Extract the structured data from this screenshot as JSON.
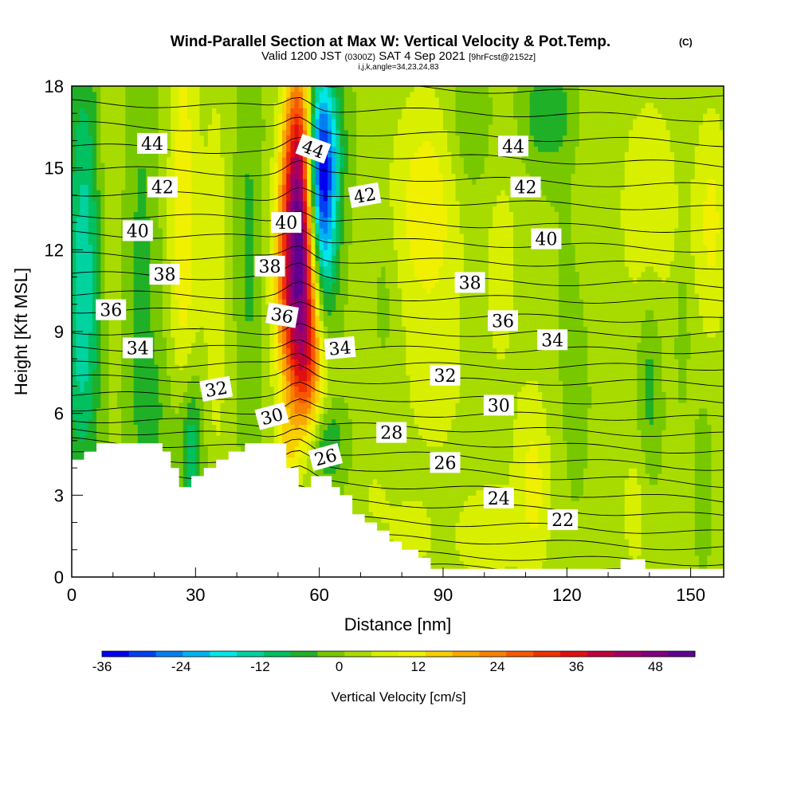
{
  "header": {
    "title": "Wind-Parallel Section at Max W: Vertical Velocity & Pot.Temp.",
    "title_mark": "(C)",
    "valid_prefix": "Valid 1200 JST",
    "valid_utc": "(0300Z)",
    "valid_date": "SAT 4 Sep 2021",
    "forecast": "[9hrFcst@2152z]",
    "location": "i,j,k,angle=34,23,24,83"
  },
  "chart_data": {
    "type": "heatmap",
    "title": "Wind-Parallel Section at Max W: Vertical Velocity & Pot.Temp.",
    "xlabel": "Distance [nm]",
    "ylabel": "Height [Kft MSL]",
    "xlim": [
      0,
      158
    ],
    "ylim": [
      0,
      18
    ],
    "x_ticks": [
      "0",
      "30",
      "60",
      "90",
      "120",
      "150"
    ],
    "y_ticks": [
      "0",
      "3",
      "6",
      "9",
      "12",
      "15",
      "18"
    ],
    "x_tick_values": [
      0,
      30,
      60,
      90,
      120,
      150
    ],
    "y_tick_values": [
      0,
      3,
      6,
      9,
      12,
      15,
      18
    ],
    "colorbar": {
      "label": "Vertical Velocity [cm/s]",
      "min": -36,
      "max": 54,
      "step": 4,
      "tick_labels": [
        "-36",
        "-24",
        "-12",
        "0",
        "12",
        "24",
        "36",
        "48"
      ],
      "tick_values": [
        -36,
        -24,
        -12,
        0,
        12,
        24,
        36,
        48
      ],
      "colors": [
        "#0000f0",
        "#0040f0",
        "#0080f0",
        "#00b4f0",
        "#00e6e6",
        "#00d2a0",
        "#00c060",
        "#20b028",
        "#78c800",
        "#a8dc00",
        "#d8f000",
        "#f0f000",
        "#f8d000",
        "#f8a800",
        "#f88000",
        "#f85800",
        "#f03000",
        "#e01010",
        "#c0003c",
        "#a00068",
        "#800080",
        "#600090"
      ]
    },
    "vertical_velocity": {
      "units": "cm/s",
      "background": 1,
      "features": [
        {
          "x": 3,
          "y": 12.5,
          "value": -14,
          "sx": 3,
          "sy": 5
        },
        {
          "x": 2,
          "y": 7,
          "value": -6,
          "sx": 3,
          "sy": 3
        },
        {
          "x": 9,
          "y": 15,
          "value": 4,
          "sx": 2,
          "sy": 4
        },
        {
          "x": 17,
          "y": 11,
          "value": -6,
          "sx": 3,
          "sy": 7
        },
        {
          "x": 27,
          "y": 13,
          "value": 10,
          "sx": 2.5,
          "sy": 6
        },
        {
          "x": 29,
          "y": 4.5,
          "value": -14,
          "sx": 2,
          "sy": 2
        },
        {
          "x": 35,
          "y": 11,
          "value": 5,
          "sx": 2.5,
          "sy": 6
        },
        {
          "x": 43,
          "y": 12,
          "value": -6,
          "sx": 2.5,
          "sy": 5
        },
        {
          "x": 22,
          "y": 6,
          "value": -4,
          "sx": 4,
          "sy": 2
        },
        {
          "x": 55,
          "y": 11,
          "value": 42,
          "sx": 3.5,
          "sy": 3
        },
        {
          "x": 55,
          "y": 15.5,
          "value": 28,
          "sx": 2.5,
          "sy": 2.8
        },
        {
          "x": 57,
          "y": 7.5,
          "value": 14,
          "sx": 3,
          "sy": 1.8
        },
        {
          "x": 60,
          "y": 15,
          "value": -30,
          "sx": 2.5,
          "sy": 2.5
        },
        {
          "x": 61,
          "y": 12,
          "value": -16,
          "sx": 2.5,
          "sy": 2.5
        },
        {
          "x": 63,
          "y": 16,
          "value": -8,
          "sx": 3,
          "sy": 2
        },
        {
          "x": 62,
          "y": 4.8,
          "value": -10,
          "sx": 3,
          "sy": 1
        },
        {
          "x": 52,
          "y": 4.6,
          "value": 8,
          "sx": 2,
          "sy": 1
        },
        {
          "x": 86,
          "y": 13.5,
          "value": 10,
          "sx": 6,
          "sy": 3
        },
        {
          "x": 76,
          "y": 10.5,
          "value": -3,
          "sx": 2,
          "sy": 2
        },
        {
          "x": 88,
          "y": 7,
          "value": 5,
          "sx": 5,
          "sy": 2
        },
        {
          "x": 104,
          "y": 12,
          "value": 4,
          "sx": 4,
          "sy": 5
        },
        {
          "x": 97,
          "y": 16.5,
          "value": -6,
          "sx": 4,
          "sy": 2
        },
        {
          "x": 115,
          "y": 17,
          "value": -8,
          "sx": 5,
          "sy": 1.5
        },
        {
          "x": 112,
          "y": 3.5,
          "value": 8,
          "sx": 3,
          "sy": 2.5
        },
        {
          "x": 100,
          "y": 1.5,
          "value": 5,
          "sx": 6,
          "sy": 1.5
        },
        {
          "x": 122,
          "y": 10,
          "value": -3,
          "sx": 3,
          "sy": 5
        },
        {
          "x": 125,
          "y": 14,
          "value": 4,
          "sx": 3,
          "sy": 3
        },
        {
          "x": 140,
          "y": 13.5,
          "value": 7,
          "sx": 5,
          "sy": 3
        },
        {
          "x": 155,
          "y": 13,
          "value": 8,
          "sx": 3,
          "sy": 3
        },
        {
          "x": 140,
          "y": 7,
          "value": -7,
          "sx": 2,
          "sy": 3
        },
        {
          "x": 148,
          "y": 9,
          "value": -6,
          "sx": 1,
          "sy": 1.5
        },
        {
          "x": 137,
          "y": 2.5,
          "value": 5,
          "sx": 3,
          "sy": 2
        },
        {
          "x": 153,
          "y": 3.5,
          "value": -4,
          "sx": 1.5,
          "sy": 2
        },
        {
          "x": 82,
          "y": 1.5,
          "value": 4,
          "sx": 5,
          "sy": 1.5
        },
        {
          "x": 73,
          "y": 3,
          "value": 3,
          "sx": 3,
          "sy": 1
        }
      ]
    },
    "terrain_kft": [
      [
        0,
        4.3
      ],
      [
        3,
        4.3
      ],
      [
        3,
        4.6
      ],
      [
        6,
        4.6
      ],
      [
        6,
        4.9
      ],
      [
        22,
        4.9
      ],
      [
        22,
        4.6
      ],
      [
        24,
        4.6
      ],
      [
        24,
        4.0
      ],
      [
        26,
        4.0
      ],
      [
        26,
        3.3
      ],
      [
        29,
        3.3
      ],
      [
        29,
        3.7
      ],
      [
        32,
        3.7
      ],
      [
        32,
        4.0
      ],
      [
        35,
        4.0
      ],
      [
        35,
        4.3
      ],
      [
        38,
        4.3
      ],
      [
        38,
        4.6
      ],
      [
        42,
        4.6
      ],
      [
        42,
        4.9
      ],
      [
        52,
        4.9
      ],
      [
        52,
        4.0
      ],
      [
        55,
        4.0
      ],
      [
        55,
        3.3
      ],
      [
        58,
        3.3
      ],
      [
        58,
        3.7
      ],
      [
        63,
        3.7
      ],
      [
        63,
        3.3
      ],
      [
        65,
        3.3
      ],
      [
        65,
        3.0
      ],
      [
        68,
        3.0
      ],
      [
        68,
        2.3
      ],
      [
        71,
        2.3
      ],
      [
        71,
        2.0
      ],
      [
        74,
        2.0
      ],
      [
        74,
        1.7
      ],
      [
        77,
        1.7
      ],
      [
        77,
        1.3
      ],
      [
        80,
        1.3
      ],
      [
        80,
        1.0
      ],
      [
        84,
        1.0
      ],
      [
        84,
        0.7
      ],
      [
        87,
        0.7
      ],
      [
        87,
        0.3
      ],
      [
        133,
        0.3
      ],
      [
        133,
        0.65
      ],
      [
        139,
        0.65
      ],
      [
        139,
        0.3
      ],
      [
        158,
        0.3
      ],
      [
        158,
        0
      ],
      [
        0,
        0
      ]
    ],
    "potential_temperature": {
      "units": "C",
      "contour_interval": 1,
      "levels": [
        {
          "theta": 20,
          "z0": 0.7,
          "z1": 0.1
        },
        {
          "theta": 21,
          "z0": 1.2,
          "z1": 0.5
        },
        {
          "theta": 22,
          "z0": 1.8,
          "z1": 1.05
        },
        {
          "theta": 23,
          "z0": 2.5,
          "z1": 1.6
        },
        {
          "theta": 24,
          "z0": 3.2,
          "z1": 2.2
        },
        {
          "theta": 25,
          "z0": 3.9,
          "z1": 2.8
        },
        {
          "theta": 26,
          "z0": 4.5,
          "z1": 3.4
        },
        {
          "theta": 27,
          "z0": 5.0,
          "z1": 4.0
        },
        {
          "theta": 28,
          "z0": 5.4,
          "z1": 4.6
        },
        {
          "theta": 29,
          "z0": 5.8,
          "z1": 5.2
        },
        {
          "theta": 30,
          "z0": 6.2,
          "z1": 5.8
        },
        {
          "theta": 31,
          "z0": 6.7,
          "z1": 6.4
        },
        {
          "theta": 32,
          "z0": 7.3,
          "z1": 7.1
        },
        {
          "theta": 33,
          "z0": 7.8,
          "z1": 7.7
        },
        {
          "theta": 34,
          "z0": 8.4,
          "z1": 8.3
        },
        {
          "theta": 35,
          "z0": 9.0,
          "z1": 8.9
        },
        {
          "theta": 36,
          "z0": 9.8,
          "z1": 9.4
        },
        {
          "theta": 37,
          "z0": 10.4,
          "z1": 10.1
        },
        {
          "theta": 38,
          "z0": 11.1,
          "z1": 10.7
        },
        {
          "theta": 39,
          "z0": 11.8,
          "z1": 11.4
        },
        {
          "theta": 40,
          "z0": 12.6,
          "z1": 12.0
        },
        {
          "theta": 41,
          "z0": 13.3,
          "z1": 12.7
        },
        {
          "theta": 42,
          "z0": 14.1,
          "z1": 13.5
        },
        {
          "theta": 43,
          "z0": 15.0,
          "z1": 14.3
        },
        {
          "theta": 44,
          "z0": 15.8,
          "z1": 15.1
        },
        {
          "theta": 45,
          "z0": 16.6,
          "z1": 15.9
        },
        {
          "theta": 46,
          "z0": 17.4,
          "z1": 16.8
        },
        {
          "theta": 47,
          "z0": 18.3,
          "z1": 17.6
        }
      ]
    },
    "contour_labels": [
      {
        "text": "44",
        "x": 19.5,
        "y": 15.9,
        "angle": 0
      },
      {
        "text": "44",
        "x": 58.5,
        "y": 15.7,
        "angle": 20
      },
      {
        "text": "44",
        "x": 107,
        "y": 15.8,
        "angle": 0
      },
      {
        "text": "42",
        "x": 22,
        "y": 14.3,
        "angle": 0
      },
      {
        "text": "42",
        "x": 71,
        "y": 14.0,
        "angle": -10
      },
      {
        "text": "42",
        "x": 110,
        "y": 14.3,
        "angle": 0
      },
      {
        "text": "40",
        "x": 16,
        "y": 12.7,
        "angle": 0
      },
      {
        "text": "40",
        "x": 52,
        "y": 13.0,
        "angle": 0
      },
      {
        "text": "40",
        "x": 115,
        "y": 12.4,
        "angle": 0
      },
      {
        "text": "38",
        "x": 22.5,
        "y": 11.1,
        "angle": 0
      },
      {
        "text": "38",
        "x": 48,
        "y": 11.4,
        "angle": 0
      },
      {
        "text": "38",
        "x": 96.5,
        "y": 10.8,
        "angle": 0
      },
      {
        "text": "36",
        "x": 9.5,
        "y": 9.8,
        "angle": 0
      },
      {
        "text": "36",
        "x": 51,
        "y": 9.6,
        "angle": 10
      },
      {
        "text": "36",
        "x": 104.5,
        "y": 9.4,
        "angle": 0
      },
      {
        "text": "34",
        "x": 16,
        "y": 8.4,
        "angle": 0
      },
      {
        "text": "34",
        "x": 65,
        "y": 8.4,
        "angle": -5
      },
      {
        "text": "34",
        "x": 116.5,
        "y": 8.7,
        "angle": 0
      },
      {
        "text": "32",
        "x": 35,
        "y": 6.9,
        "angle": -10
      },
      {
        "text": "32",
        "x": 90.5,
        "y": 7.4,
        "angle": 0
      },
      {
        "text": "30",
        "x": 48.5,
        "y": 5.9,
        "angle": -15
      },
      {
        "text": "30",
        "x": 103.5,
        "y": 6.3,
        "angle": 0
      },
      {
        "text": "28",
        "x": 77.5,
        "y": 5.3,
        "angle": 0
      },
      {
        "text": "26",
        "x": 61.5,
        "y": 4.4,
        "angle": -15
      },
      {
        "text": "26",
        "x": 90.5,
        "y": 4.2,
        "angle": 0
      },
      {
        "text": "24",
        "x": 103.5,
        "y": 2.9,
        "angle": 0
      },
      {
        "text": "22",
        "x": 119,
        "y": 2.1,
        "angle": 0
      }
    ]
  }
}
